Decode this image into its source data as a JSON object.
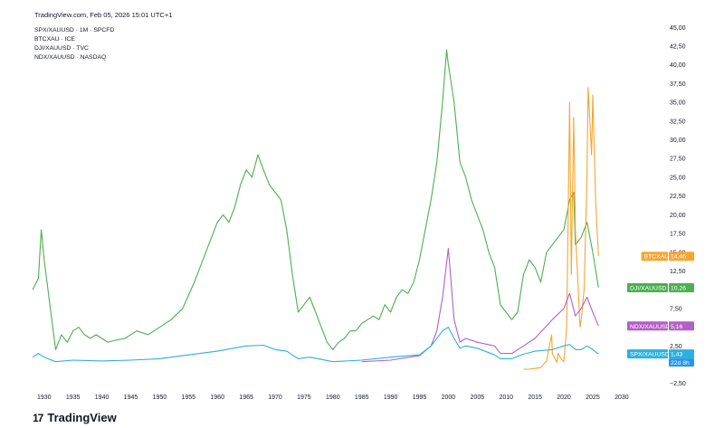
{
  "header": {
    "source_line": "TradingView.com, Feb 05, 2026 15:01 UTC+1"
  },
  "legend": [
    "SPX/XAUUSD · 1M · SPCFD",
    "BTCXAU · ICE",
    "DJI/XAUUSD · TVC",
    "NDX/XAUUSD · NASDAQ"
  ],
  "brand": {
    "name": "TradingView",
    "logo_text": "17"
  },
  "colors": {
    "dji": "#4caf50",
    "btc": "#f7a531",
    "ndx": "#b45fc8",
    "spx": "#2bb0e0",
    "axis_text": "#131722",
    "countdown_bg": "#2196f3"
  },
  "chart_data": {
    "type": "line",
    "title": "",
    "xlabel": "",
    "ylabel": "",
    "x_range": [
      1928,
      2033
    ],
    "ylim": [
      -3.5,
      46
    ],
    "x_ticks": [
      1930,
      1935,
      1940,
      1945,
      1950,
      1955,
      1960,
      1965,
      1970,
      1975,
      1980,
      1985,
      1990,
      1995,
      2000,
      2005,
      2010,
      2015,
      2020,
      2025,
      2030
    ],
    "y_ticks": [
      {
        "v": 45,
        "t": "45,00"
      },
      {
        "v": 42.5,
        "t": "42,50"
      },
      {
        "v": 40,
        "t": "40,00"
      },
      {
        "v": 37.5,
        "t": "37,50"
      },
      {
        "v": 35,
        "t": "35,00"
      },
      {
        "v": 32.5,
        "t": "32,50"
      },
      {
        "v": 30,
        "t": "30,00"
      },
      {
        "v": 27.5,
        "t": "27,50"
      },
      {
        "v": 25,
        "t": "25,00"
      },
      {
        "v": 22.5,
        "t": "22,50"
      },
      {
        "v": 20,
        "t": "20,00"
      },
      {
        "v": 17.5,
        "t": "17,50"
      },
      {
        "v": 15,
        "t": "15,00"
      },
      {
        "v": 12.5,
        "t": "12,50"
      },
      {
        "v": 7.5,
        "t": "7,50"
      },
      {
        "v": 2.5,
        "t": "2,50"
      },
      {
        "v": -2.5,
        "t": "−2,50"
      }
    ],
    "grid": false,
    "series": [
      {
        "name": "DJI/XAUUSD",
        "key": "dji",
        "x": [
          1928,
          1929,
          1929.5,
          1930,
          1931,
          1932,
          1933,
          1934,
          1935,
          1936,
          1937,
          1938,
          1939,
          1940,
          1941,
          1942,
          1944,
          1946,
          1948,
          1950,
          1952,
          1954,
          1956,
          1958,
          1959,
          1960,
          1961,
          1962,
          1963,
          1964,
          1965,
          1966,
          1967,
          1968,
          1969,
          1970,
          1971,
          1972,
          1973,
          1974,
          1975,
          1976,
          1977,
          1978,
          1979,
          1980,
          1981,
          1982,
          1983,
          1984,
          1985,
          1986,
          1987,
          1988,
          1989,
          1990,
          1991,
          1992,
          1993,
          1994,
          1995,
          1996,
          1997,
          1998,
          1999,
          1999.7,
          2000,
          2001,
          2002,
          2003,
          2004,
          2005,
          2006,
          2007,
          2008,
          2009,
          2010,
          2011,
          2012,
          2013,
          2014,
          2015,
          2016,
          2017,
          2018,
          2019,
          2020,
          2021,
          2021.7,
          2022,
          2023,
          2024,
          2025,
          2026
        ],
        "y": [
          10,
          11.5,
          18,
          14,
          8,
          2,
          4,
          3,
          4.5,
          5,
          4,
          3.5,
          4,
          3.5,
          3,
          3.2,
          3.5,
          4.5,
          4,
          5,
          6,
          7.5,
          11,
          15,
          17,
          19,
          20,
          19,
          21,
          24,
          26,
          25,
          28,
          26,
          24,
          23,
          22,
          18,
          12,
          7,
          8,
          9,
          7,
          5,
          3,
          2,
          3,
          3.5,
          4.5,
          4.5,
          5.5,
          6,
          6.5,
          6,
          8,
          7,
          9,
          10,
          9.5,
          11,
          14,
          18,
          22,
          27,
          35,
          42,
          40,
          35,
          27,
          25,
          22,
          20,
          18,
          15,
          13,
          8,
          7,
          6,
          7,
          12,
          14,
          13,
          11,
          15,
          16,
          17,
          18,
          22,
          23,
          16,
          17,
          19,
          15,
          10.3
        ]
      },
      {
        "name": "BTCXAU",
        "key": "btc",
        "x": [
          2013,
          2014,
          2015,
          2016,
          2017,
          2017.9,
          2018,
          2018.8,
          2019,
          2019.5,
          2020,
          2020.5,
          2021,
          2021.3,
          2021.7,
          2022,
          2022.8,
          2023,
          2023.5,
          2024,
          2024.2,
          2024.8,
          2025,
          2025.5,
          2026
        ],
        "y": [
          -0.6,
          -0.6,
          -0.5,
          -0.4,
          0.5,
          4,
          1.5,
          0.3,
          1.5,
          0.8,
          0.4,
          5,
          35,
          12,
          33,
          18,
          5,
          6,
          10,
          25,
          37,
          28,
          36,
          22,
          14.5
        ]
      },
      {
        "name": "NDX/XAUUSD",
        "key": "ndx",
        "x": [
          1985,
          1990,
          1995,
          1997,
          1998,
          1999,
          2000,
          2001,
          2002,
          2003,
          2005,
          2008,
          2009,
          2011,
          2013,
          2015,
          2018,
          2020,
          2021,
          2022,
          2023,
          2024,
          2025,
          2026
        ],
        "y": [
          0.4,
          0.6,
          1.2,
          2.5,
          4.5,
          9,
          15.5,
          6,
          3,
          3.5,
          3,
          2.5,
          1.5,
          1.5,
          2.5,
          3.5,
          6,
          7.5,
          9.5,
          6.5,
          7.5,
          9,
          7,
          5.16
        ]
      },
      {
        "name": "SPX/XAUUSD",
        "key": "spx",
        "x": [
          1928,
          1929,
          1930,
          1932,
          1935,
          1940,
          1945,
          1950,
          1955,
          1960,
          1965,
          1968,
          1970,
          1972,
          1974,
          1976,
          1980,
          1985,
          1990,
          1995,
          1997,
          1999,
          2000,
          2001,
          2002,
          2003,
          2005,
          2008,
          2009,
          2011,
          2013,
          2015,
          2018,
          2020,
          2021,
          2022,
          2023,
          2024,
          2025,
          2026
        ],
        "y": [
          1,
          1.5,
          1,
          0.4,
          0.6,
          0.5,
          0.6,
          0.8,
          1.3,
          1.8,
          2.5,
          2.6,
          2,
          1.8,
          0.8,
          1,
          0.4,
          0.6,
          1,
          1.3,
          2.5,
          4.5,
          5,
          3.5,
          2.2,
          2.5,
          2.2,
          1.3,
          0.8,
          0.8,
          1.4,
          1.8,
          2,
          2.5,
          2.7,
          2,
          2,
          2.5,
          2,
          1.43
        ]
      }
    ],
    "price_labels": [
      {
        "key": "btc",
        "name": "BTCXAU",
        "value": "14,46",
        "y": 14.46
      },
      {
        "key": "dji",
        "name": "DJI/XAUUSD",
        "value": "10,26",
        "y": 10.26
      },
      {
        "key": "ndx",
        "name": "NDX/XAUUSD",
        "value": "5,16",
        "y": 5.16
      },
      {
        "key": "spx",
        "name": "SPX/XAUUSD",
        "value": "1,43",
        "y": 1.43
      }
    ],
    "countdown": "22d 8h"
  }
}
